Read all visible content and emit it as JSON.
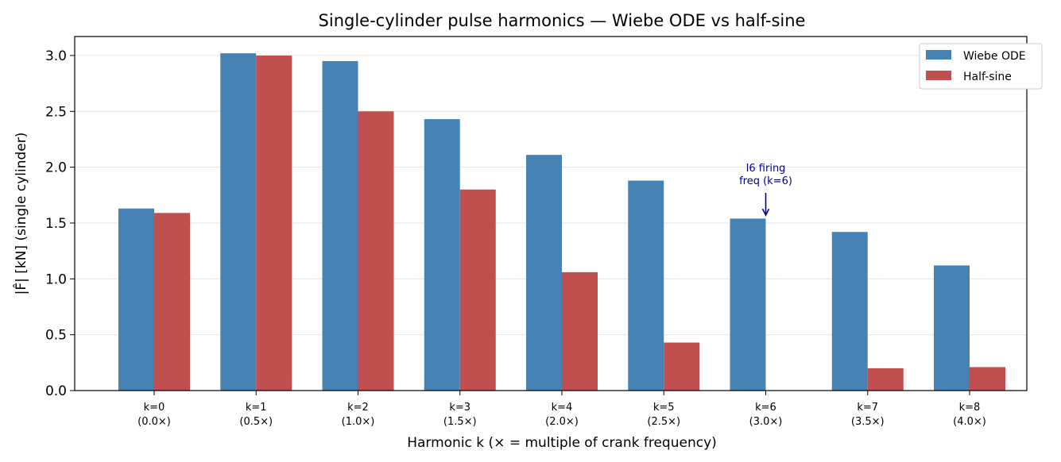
{
  "chart_data": {
    "type": "bar",
    "title": "Single-cylinder pulse harmonics — Wiebe ODE vs half-sine",
    "xlabel": "Harmonic k  (× = multiple of crank frequency)",
    "ylabel": "|F̂| [kN]  (single cylinder)",
    "ylim": [
      0,
      3.17
    ],
    "yticks": [
      "0.0",
      "0.5",
      "1.0",
      "1.5",
      "2.0",
      "2.5",
      "3.0"
    ],
    "grid": true,
    "legend_position": "top-right",
    "categories": [
      {
        "k": "k=0",
        "mult": "(0.0×)"
      },
      {
        "k": "k=1",
        "mult": "(0.5×)"
      },
      {
        "k": "k=2",
        "mult": "(1.0×)"
      },
      {
        "k": "k=3",
        "mult": "(1.5×)"
      },
      {
        "k": "k=4",
        "mult": "(2.0×)"
      },
      {
        "k": "k=5",
        "mult": "(2.5×)"
      },
      {
        "k": "k=6",
        "mult": "(3.0×)"
      },
      {
        "k": "k=7",
        "mult": "(3.5×)"
      },
      {
        "k": "k=8",
        "mult": "(4.0×)"
      }
    ],
    "series": [
      {
        "name": "Wiebe ODE",
        "color": "#4682b4",
        "values": [
          1.63,
          3.02,
          2.95,
          2.43,
          2.11,
          1.88,
          1.54,
          1.42,
          1.12
        ]
      },
      {
        "name": "Half-sine",
        "color": "#c04f4f",
        "values": [
          1.59,
          3.0,
          2.5,
          1.8,
          1.06,
          0.43,
          0.0,
          0.2,
          0.21
        ]
      }
    ],
    "annotation": {
      "line1": "I6 firing",
      "line2": "freq (k=6)",
      "color": "#00008b",
      "category_index": 6,
      "arrow_tip_value": 1.57,
      "arrow_tail_value": 1.77
    }
  }
}
